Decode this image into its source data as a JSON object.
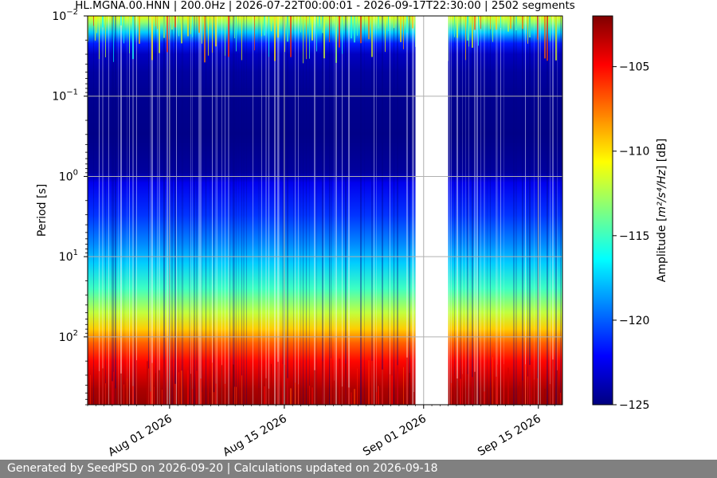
{
  "footer": {
    "text": "Generated by SeedPSD on 2026-09-20 | Calculations updated on 2026-09-18"
  },
  "chart_data": {
    "type": "heatmap",
    "title": "HL.MGNA.00.HNN | 200.0Hz | 2026-07-22T00:00:01 - 2026-09-17T22:30:00 | 2502 segments",
    "ylabel": "Period [s]",
    "xlabel": "",
    "y_scale": "log",
    "y_inverted": true,
    "ylim": [
      0.01,
      700
    ],
    "xlim": [
      "2026-07-22",
      "2026-09-17"
    ],
    "y_tick_labels": [
      {
        "value": 0.01,
        "base": "10",
        "exp": "−2"
      },
      {
        "value": 0.1,
        "base": "10",
        "exp": "−1"
      },
      {
        "value": 1,
        "base": "10",
        "exp": "0"
      },
      {
        "value": 10,
        "base": "10",
        "exp": "1"
      },
      {
        "value": 100,
        "base": "10",
        "exp": "2"
      }
    ],
    "x_tick_labels": [
      {
        "date": "2026-08-01",
        "label": "Aug 01 2026"
      },
      {
        "date": "2026-08-15",
        "label": "Aug 15 2026"
      },
      {
        "date": "2026-09-01",
        "label": "Sep 01 2026"
      },
      {
        "date": "2026-09-15",
        "label": "Sep 15 2026"
      }
    ],
    "data_gap": [
      "2026-08-31",
      "2026-09-04"
    ],
    "grid": true,
    "colorbar": {
      "label_prefix": "Amplitude [",
      "label_units": "m²/s⁴/Hz",
      "label_suffix": "] [dB]",
      "range": [
        -125,
        -102
      ],
      "ticks": [
        {
          "value": -105,
          "label": "−105"
        },
        {
          "value": -110,
          "label": "−110"
        },
        {
          "value": -115,
          "label": "−115"
        },
        {
          "value": -120,
          "label": "−120"
        },
        {
          "value": -125,
          "label": "−125"
        }
      ],
      "colormap": "jet",
      "colormap_stops": [
        "#00007f",
        "#0000ff",
        "#007fff",
        "#00ffff",
        "#7fff7f",
        "#ffff00",
        "#ff7f00",
        "#ff0000",
        "#7f0000"
      ]
    },
    "amplitude_profile": [
      {
        "period": 0.01,
        "db": -111
      },
      {
        "period": 0.012,
        "db": -113
      },
      {
        "period": 0.016,
        "db": -117.5
      },
      {
        "period": 0.022,
        "db": -121.5
      },
      {
        "period": 0.03,
        "db": -123.5
      },
      {
        "period": 0.05,
        "db": -124.2
      },
      {
        "period": 0.1,
        "db": -124.6
      },
      {
        "period": 0.3,
        "db": -124.8
      },
      {
        "period": 0.9,
        "db": -124.3
      },
      {
        "period": 1.2,
        "db": -122.5
      },
      {
        "period": 3,
        "db": -121
      },
      {
        "period": 7,
        "db": -119
      },
      {
        "period": 12,
        "db": -117.5
      },
      {
        "period": 25,
        "db": -115
      },
      {
        "period": 50,
        "db": -112
      },
      {
        "period": 80,
        "db": -109.5
      },
      {
        "period": 120,
        "db": -107
      },
      {
        "period": 200,
        "db": -105
      },
      {
        "period": 300,
        "db": -104
      },
      {
        "period": 450,
        "db": -103
      },
      {
        "period": 700,
        "db": -102.5
      }
    ]
  }
}
